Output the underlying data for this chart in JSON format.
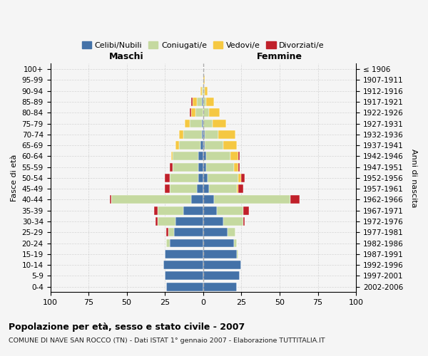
{
  "age_groups": [
    "100+",
    "95-99",
    "90-94",
    "85-89",
    "80-84",
    "75-79",
    "70-74",
    "65-69",
    "60-64",
    "55-59",
    "50-54",
    "45-49",
    "40-44",
    "35-39",
    "30-34",
    "25-29",
    "20-24",
    "15-19",
    "10-14",
    "5-9",
    "0-4"
  ],
  "birth_years": [
    "≤ 1906",
    "1907-1911",
    "1912-1916",
    "1917-1921",
    "1922-1926",
    "1927-1931",
    "1932-1936",
    "1937-1941",
    "1942-1946",
    "1947-1951",
    "1952-1956",
    "1957-1961",
    "1962-1966",
    "1967-1971",
    "1972-1976",
    "1977-1981",
    "1982-1986",
    "1987-1991",
    "1992-1996",
    "1997-2001",
    "2002-2006"
  ],
  "maschi": {
    "celibi": [
      0,
      0,
      0,
      1,
      0,
      1,
      1,
      2,
      3,
      3,
      3,
      4,
      8,
      13,
      18,
      19,
      22,
      25,
      26,
      25,
      24
    ],
    "coniugati": [
      0,
      0,
      1,
      3,
      5,
      8,
      12,
      14,
      17,
      17,
      19,
      18,
      52,
      17,
      12,
      4,
      2,
      0,
      0,
      0,
      0
    ],
    "vedovi": [
      0,
      0,
      1,
      3,
      3,
      3,
      3,
      2,
      1,
      0,
      0,
      0,
      0,
      0,
      0,
      0,
      0,
      0,
      0,
      0,
      0
    ],
    "divorziati": [
      0,
      0,
      0,
      1,
      1,
      0,
      0,
      0,
      0,
      2,
      3,
      3,
      1,
      2,
      1,
      1,
      0,
      0,
      0,
      0,
      0
    ]
  },
  "femmine": {
    "nubili": [
      0,
      0,
      0,
      0,
      0,
      0,
      1,
      1,
      2,
      2,
      3,
      4,
      7,
      9,
      13,
      16,
      20,
      22,
      25,
      24,
      22
    ],
    "coniugate": [
      0,
      0,
      1,
      2,
      4,
      6,
      9,
      12,
      16,
      18,
      20,
      18,
      50,
      17,
      13,
      5,
      2,
      1,
      0,
      0,
      0
    ],
    "vedove": [
      0,
      1,
      2,
      5,
      7,
      9,
      11,
      9,
      5,
      3,
      2,
      1,
      0,
      0,
      0,
      0,
      0,
      0,
      0,
      0,
      0
    ],
    "divorziate": [
      0,
      0,
      0,
      0,
      0,
      0,
      0,
      0,
      1,
      1,
      2,
      3,
      6,
      4,
      1,
      0,
      0,
      0,
      0,
      0,
      0
    ]
  },
  "colors": {
    "celibi_nubili": "#4472a8",
    "coniugati": "#c5d9a0",
    "vedovi": "#f5c842",
    "divorziati": "#c0202a"
  },
  "xlim": 100,
  "title": "Popolazione per età, sesso e stato civile - 2007",
  "subtitle": "COMUNE DI NAVE SAN ROCCO (TN) - Dati ISTAT 1° gennaio 2007 - Elaborazione TUTTITALIA.IT",
  "ylabel_left": "Fasce di età",
  "ylabel_right": "Anni di nascita",
  "xlabel_left": "Maschi",
  "xlabel_right": "Femmine",
  "bg_color": "#f5f5f5",
  "grid_color": "#cccccc"
}
